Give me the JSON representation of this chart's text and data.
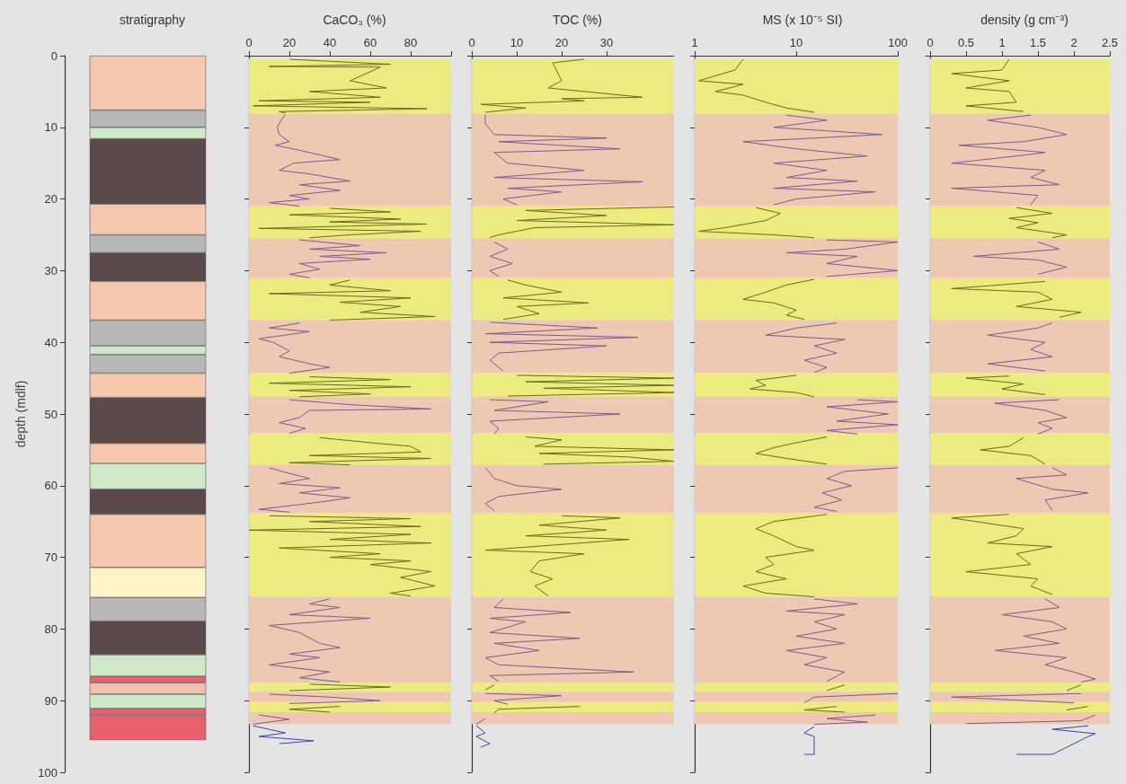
{
  "chart_data": [
    {
      "type": "bar",
      "title": "stratigraphy",
      "ylabel": "depth (mdlf)",
      "ylim": [
        100,
        0
      ],
      "yticks": [
        0,
        10,
        20,
        30,
        40,
        50,
        60,
        70,
        80,
        90,
        100
      ],
      "tick_labels": "y",
      "stacked": true,
      "categories": [
        null
      ],
      "series": [
        {
          "color": "#f6c8b0",
          "values": [
            7.6
          ]
        },
        {
          "color": "#b8b8b8",
          "values": [
            2.4
          ]
        },
        {
          "color": "#cfe8c8",
          "values": [
            1.6
          ]
        },
        {
          "color": "#5a4a4a",
          "values": [
            9.1
          ]
        },
        {
          "color": "#f6c8b0",
          "values": [
            4.3
          ]
        },
        {
          "color": "#b8b8b8",
          "values": [
            2.5
          ]
        },
        {
          "color": "#5a4a4a",
          "values": [
            4.0
          ]
        },
        {
          "color": "#f6c8b0",
          "values": [
            5.4
          ]
        },
        {
          "color": "#b8b8b8",
          "values": [
            3.6
          ]
        },
        {
          "color": "#cfe8c8",
          "values": [
            1.2
          ]
        },
        {
          "color": "#b8b8b8",
          "values": [
            2.6
          ]
        },
        {
          "color": "#f6c8b0",
          "values": [
            3.4
          ]
        },
        {
          "color": "#5a4a4a",
          "values": [
            6.4
          ]
        },
        {
          "color": "#f6c8b0",
          "values": [
            2.8
          ]
        },
        {
          "color": "#cfe8c8",
          "values": [
            3.6
          ]
        },
        {
          "color": "#5a4a4a",
          "values": [
            3.5
          ]
        },
        {
          "color": "#f6c8b0",
          "values": [
            7.4
          ]
        },
        {
          "color": "#fff4c8",
          "values": [
            4.2
          ]
        },
        {
          "color": "#b8b8b8",
          "values": [
            3.3
          ]
        },
        {
          "color": "#5a4a4a",
          "values": [
            4.7
          ]
        },
        {
          "color": "#cfe8c8",
          "values": [
            3.0
          ]
        },
        {
          "color": "#e86070",
          "values": [
            0.9
          ]
        },
        {
          "color": "#f0c0b0",
          "values": [
            1.6
          ]
        },
        {
          "color": "#cfe8c8",
          "values": [
            2.0
          ]
        },
        {
          "color": "#e86070",
          "values": [
            0.9
          ]
        },
        {
          "color": "#e8606e",
          "values": [
            3.5
          ]
        }
      ]
    },
    {
      "type": "line",
      "title": "CaCO₃ (%)",
      "xlim": [
        0,
        100
      ],
      "xticks": [
        0,
        20,
        40,
        60,
        80,
        {
          "value": 100,
          "label": null
        }
      ],
      "ylim": [
        100,
        0
      ],
      "yticks": [
        0,
        10,
        20,
        30,
        40,
        50,
        60,
        70,
        80,
        90,
        100
      ],
      "tick_labels": "x",
      "marker": "none",
      "bands": [
        {
          "axis": "y",
          "from": 0.4,
          "to": 8.1,
          "color": "#ebeb80"
        },
        {
          "axis": "y",
          "from": 8.1,
          "to": 21,
          "color": "#efc8b4"
        },
        {
          "axis": "y",
          "from": 21,
          "to": 25.5,
          "color": "#ebeb80"
        },
        {
          "axis": "y",
          "from": 25.5,
          "to": 31,
          "color": "#efc8b4"
        },
        {
          "axis": "y",
          "from": 31,
          "to": 36.9,
          "color": "#ebeb80"
        },
        {
          "axis": "y",
          "from": 36.9,
          "to": 44.3,
          "color": "#efc8b4"
        },
        {
          "axis": "y",
          "from": 44.3,
          "to": 47.6,
          "color": "#ebeb80"
        },
        {
          "axis": "y",
          "from": 47.6,
          "to": 52.7,
          "color": "#efc8b4"
        },
        {
          "axis": "y",
          "from": 52.7,
          "to": 57.1,
          "color": "#ebeb80"
        },
        {
          "axis": "y",
          "from": 57.1,
          "to": 63.8,
          "color": "#efc8b4"
        },
        {
          "axis": "y",
          "from": 63.8,
          "to": 75.5,
          "color": "#ebeb80"
        },
        {
          "axis": "y",
          "from": 75.5,
          "to": 87.5,
          "color": "#efc8b4"
        },
        {
          "axis": "y",
          "from": 87.5,
          "to": 88.8,
          "color": "#ebeb80"
        },
        {
          "axis": "y",
          "from": 88.8,
          "to": 90.2,
          "color": "#efc8b4"
        },
        {
          "axis": "y",
          "from": 90.2,
          "to": 91.6,
          "color": "#ebeb80"
        },
        {
          "axis": "y",
          "from": 91.6,
          "to": 93.3,
          "color": "#efc8b4"
        }
      ],
      "series": [
        {
          "color": "#6f6a1e",
          "x": [
            20,
            70,
            10,
            65,
            50,
            68,
            30,
            65,
            5,
            60,
            2,
            88,
            15,
            18,
            null,
            40,
            70,
            20,
            75,
            40,
            88,
            5,
            85,
            50,
            30,
            null,
            50,
            40,
            70,
            10,
            80,
            45,
            75,
            55,
            92,
            40,
            null,
            30,
            70,
            10,
            80,
            20,
            60,
            25,
            null,
            35,
            60,
            80,
            85,
            30,
            90,
            20,
            50,
            null,
            10,
            80,
            30,
            85,
            0,
            80,
            40,
            90,
            15,
            65,
            40,
            80,
            60,
            90,
            75,
            92,
            70,
            80,
            null,
            30,
            70,
            20,
            null,
            45,
            20,
            40
          ],
          "values": [
            0.5,
            1.2,
            1.5,
            1.6,
            3.5,
            4.5,
            5,
            5.8,
            6.3,
            6.5,
            7,
            7.4,
            7.8,
            8.0,
            null,
            21.3,
            21.8,
            22.2,
            22.8,
            23.2,
            23.5,
            24.1,
            24.5,
            25,
            25.4,
            null,
            31.3,
            32,
            32.8,
            33.2,
            33.8,
            34.4,
            35,
            35.8,
            36.4,
            36.9,
            null,
            44.8,
            45.2,
            45.7,
            46.2,
            46.7,
            47.2,
            47.6,
            null,
            53.3,
            54,
            54.5,
            55.3,
            55.8,
            56.2,
            56.8,
            57.1,
            null,
            64.2,
            64.6,
            65,
            65.7,
            66.2,
            66.8,
            67.5,
            68,
            68.7,
            69.5,
            70,
            70.5,
            71,
            72,
            72.8,
            74,
            75,
            75.4,
            null,
            87.7,
            88.1,
            88.6,
            null,
            90.8,
            91.2,
            91.6
          ]
        },
        {
          "color": "#7b5c8c",
          "x": [
            18,
            16,
            14,
            15,
            20,
            13,
            25,
            45,
            22,
            15,
            30,
            50,
            25,
            45,
            20,
            30,
            10,
            25,
            null,
            25,
            55,
            30,
            68,
            35,
            60,
            25,
            35,
            20,
            30,
            null,
            25,
            10,
            30,
            5,
            12,
            20,
            15,
            30,
            40,
            20,
            null,
            20,
            50,
            90,
            30,
            25,
            15,
            28,
            20,
            null,
            10,
            20,
            30,
            15,
            45,
            25,
            50,
            35,
            5,
            20,
            null,
            40,
            30,
            45,
            20,
            60,
            10,
            25,
            35,
            45,
            20,
            35,
            10,
            40,
            25,
            45,
            null,
            10,
            40,
            65,
            20,
            null,
            5,
            20,
            2
          ],
          "values": [
            8.2,
            9,
            10,
            11,
            12,
            12.5,
            13.2,
            14.5,
            15,
            16,
            16.5,
            17.5,
            18,
            18.8,
            19.5,
            20,
            20.5,
            21,
            null,
            25.7,
            26.5,
            27,
            27.5,
            28,
            28.4,
            29,
            29.8,
            30.5,
            31,
            null,
            37.3,
            38,
            38.5,
            39.5,
            40,
            41.2,
            42,
            43,
            43.5,
            44.3,
            null,
            48,
            48.7,
            49.3,
            49.5,
            50.5,
            51.2,
            52,
            52.7,
            null,
            57.5,
            58.3,
            59,
            59.7,
            60.3,
            61,
            61.7,
            62.3,
            63.3,
            63.7,
            null,
            75.8,
            76.5,
            77,
            78,
            78.5,
            79.5,
            80.5,
            82,
            82.6,
            83.5,
            84,
            85,
            86,
            86.8,
            87.4,
            null,
            89.1,
            89.5,
            90,
            90.4,
            null,
            92,
            92.6,
            93.3
          ]
        },
        {
          "color": "#3848a0",
          "x": [
            2,
            18,
            5,
            32,
            15
          ],
          "values": [
            93.5,
            94.5,
            95,
            95.6,
            96
          ]
        }
      ]
    },
    {
      "type": "line",
      "title": "TOC (%)",
      "xlim": [
        0,
        45
      ],
      "xticks": [
        0,
        10,
        20,
        30
      ],
      "ylim": [
        100,
        0
      ],
      "yticks": [
        0,
        10,
        20,
        30,
        40,
        50,
        60,
        70,
        80,
        90,
        100
      ],
      "tick_labels": "x",
      "marker": "none",
      "bands": [
        {
          "axis": "y",
          "from": 0.4,
          "to": 8.1,
          "color": "#ebeb80"
        },
        {
          "axis": "y",
          "from": 8.1,
          "to": 21,
          "color": "#efc8b4"
        },
        {
          "axis": "y",
          "from": 21,
          "to": 25.5,
          "color": "#ebeb80"
        },
        {
          "axis": "y",
          "from": 25.5,
          "to": 31,
          "color": "#efc8b4"
        },
        {
          "axis": "y",
          "from": 31,
          "to": 36.9,
          "color": "#ebeb80"
        },
        {
          "axis": "y",
          "from": 36.9,
          "to": 44.3,
          "color": "#efc8b4"
        },
        {
          "axis": "y",
          "from": 44.3,
          "to": 47.6,
          "color": "#ebeb80"
        },
        {
          "axis": "y",
          "from": 47.6,
          "to": 52.7,
          "color": "#efc8b4"
        },
        {
          "axis": "y",
          "from": 52.7,
          "to": 57.1,
          "color": "#ebeb80"
        },
        {
          "axis": "y",
          "from": 57.1,
          "to": 63.8,
          "color": "#efc8b4"
        },
        {
          "axis": "y",
          "from": 63.8,
          "to": 75.5,
          "color": "#ebeb80"
        },
        {
          "axis": "y",
          "from": 75.5,
          "to": 87.5,
          "color": "#efc8b4"
        },
        {
          "axis": "y",
          "from": 87.5,
          "to": 88.8,
          "color": "#ebeb80"
        },
        {
          "axis": "y",
          "from": 88.8,
          "to": 90.2,
          "color": "#efc8b4"
        },
        {
          "axis": "y",
          "from": 90.2,
          "to": 91.6,
          "color": "#ebeb80"
        },
        {
          "axis": "y",
          "from": 91.6,
          "to": 93.3,
          "color": "#efc8b4"
        }
      ],
      "series": [
        {
          "color": "#6f6a1e",
          "x": [
            25,
            18,
            20,
            17,
            38,
            20,
            25,
            2,
            12,
            3,
            null,
            45,
            12,
            30,
            10,
            45,
            14,
            6,
            4,
            null,
            8,
            12,
            20,
            7,
            26,
            10,
            15,
            7,
            null,
            10,
            45,
            12,
            45,
            16,
            45,
            8,
            null,
            12,
            20,
            14,
            45,
            15,
            35,
            45,
            16,
            null,
            20,
            33,
            15,
            30,
            12,
            35,
            3,
            25,
            15,
            13,
            18,
            14,
            17,
            null,
            5,
            3,
            null,
            24,
            6,
            5
          ],
          "values": [
            0.5,
            1,
            3.5,
            4.5,
            5.8,
            6,
            6.3,
            6.8,
            7.3,
            7.9,
            null,
            21.1,
            21.6,
            22.3,
            23,
            23.6,
            24,
            25,
            25.4,
            null,
            31.3,
            32,
            33,
            33.8,
            34.5,
            35,
            36,
            36.8,
            null,
            44.6,
            45,
            45.5,
            46,
            46.4,
            47,
            47.5,
            null,
            53.2,
            53.6,
            54.5,
            55,
            55.5,
            56,
            56.6,
            57,
            null,
            64.2,
            64.5,
            65.5,
            66.2,
            67,
            67.5,
            69,
            69.5,
            70.5,
            72,
            73,
            74,
            75.4,
            null,
            87.8,
            88.5,
            null,
            90.8,
            91.2,
            91.7
          ]
        },
        {
          "color": "#7b5c8c",
          "x": [
            3,
            3,
            5,
            30,
            6,
            33,
            5,
            8,
            25,
            5,
            38,
            8,
            20,
            7,
            10,
            null,
            5,
            8,
            4,
            9,
            4,
            6,
            null,
            4,
            28,
            3,
            37,
            4,
            30,
            6,
            4,
            7,
            null,
            4,
            17,
            5,
            33,
            4,
            6,
            5,
            null,
            3,
            5,
            10,
            20,
            6,
            3,
            5,
            null,
            7,
            5,
            22,
            4,
            12,
            4,
            24,
            5,
            15,
            3,
            6,
            36,
            4,
            6,
            null,
            3,
            20,
            5,
            8,
            null,
            3,
            1
          ],
          "values": [
            8.3,
            9.5,
            11,
            11.5,
            12,
            13,
            13.5,
            15,
            16,
            17,
            17.6,
            18.5,
            19,
            20,
            20.8,
            null,
            26,
            27,
            28,
            29,
            30,
            30.8,
            null,
            37.2,
            38,
            38.8,
            39.3,
            40,
            40.5,
            41.5,
            42.5,
            44,
            null,
            48,
            48.3,
            49.5,
            50,
            51,
            52,
            52.8,
            null,
            57.5,
            59,
            60,
            60.5,
            61.5,
            62.5,
            63.5,
            null,
            75.8,
            77,
            77.7,
            78.5,
            79,
            80.5,
            81.3,
            82,
            83,
            84,
            85,
            86,
            86.5,
            87.3,
            null,
            89,
            89.3,
            90,
            90.5,
            null,
            92.5,
            93.3
          ]
        },
        {
          "color": "#3848a0",
          "x": [
            1,
            3,
            1,
            4,
            2
          ],
          "values": [
            93.5,
            94.5,
            95,
            96,
            96.5
          ]
        }
      ]
    },
    {
      "type": "line",
      "title": "MS (x 10⁻⁵ SI)",
      "log": "x",
      "xlim": [
        1,
        100
      ],
      "xticks": [
        1,
        10,
        100
      ],
      "ylim": [
        100,
        0
      ],
      "yticks": [
        0,
        10,
        20,
        30,
        40,
        50,
        60,
        70,
        80,
        90,
        100
      ],
      "tick_labels": "x",
      "marker": "none",
      "bands": [
        {
          "axis": "y",
          "from": 0.4,
          "to": 8.1,
          "color": "#ebeb80"
        },
        {
          "axis": "y",
          "from": 8.1,
          "to": 21,
          "color": "#efc8b4"
        },
        {
          "axis": "y",
          "from": 21,
          "to": 25.5,
          "color": "#ebeb80"
        },
        {
          "axis": "y",
          "from": 25.5,
          "to": 31,
          "color": "#efc8b4"
        },
        {
          "axis": "y",
          "from": 31,
          "to": 36.9,
          "color": "#ebeb80"
        },
        {
          "axis": "y",
          "from": 36.9,
          "to": 44.3,
          "color": "#efc8b4"
        },
        {
          "axis": "y",
          "from": 44.3,
          "to": 47.6,
          "color": "#ebeb80"
        },
        {
          "axis": "y",
          "from": 47.6,
          "to": 52.7,
          "color": "#efc8b4"
        },
        {
          "axis": "y",
          "from": 52.7,
          "to": 57.1,
          "color": "#ebeb80"
        },
        {
          "axis": "y",
          "from": 57.1,
          "to": 63.8,
          "color": "#efc8b4"
        },
        {
          "axis": "y",
          "from": 63.8,
          "to": 75.5,
          "color": "#ebeb80"
        },
        {
          "axis": "y",
          "from": 75.5,
          "to": 87.5,
          "color": "#efc8b4"
        },
        {
          "axis": "y",
          "from": 87.5,
          "to": 88.8,
          "color": "#ebeb80"
        },
        {
          "axis": "y",
          "from": 88.8,
          "to": 90.2,
          "color": "#efc8b4"
        },
        {
          "axis": "y",
          "from": 90.2,
          "to": 91.6,
          "color": "#ebeb80"
        },
        {
          "axis": "y",
          "from": 91.6,
          "to": 93.3,
          "color": "#efc8b4"
        }
      ],
      "series": [
        {
          "color": "#6f6a1e",
          "x": [
            3,
            2.5,
            1.1,
            3,
            1.6,
            3,
            5,
            8,
            15,
            null,
            4,
            7,
            5,
            2,
            1.1,
            6,
            15,
            null,
            15,
            8,
            5,
            3,
            6,
            10,
            8,
            12,
            null,
            10,
            4,
            5,
            3.5,
            10,
            15,
            null,
            20,
            10,
            6,
            4,
            8,
            20,
            null,
            20,
            6,
            4,
            6,
            10,
            15,
            5,
            6,
            4,
            8,
            3,
            5,
            15,
            null,
            30,
            20,
            null,
            25,
            12,
            30
          ],
          "values": [
            0.5,
            2,
            3.5,
            4,
            5,
            5.5,
            6.5,
            7.3,
            7.9,
            null,
            21.2,
            22,
            23,
            24,
            24.5,
            25,
            25.4,
            null,
            31.2,
            32,
            33,
            34,
            34.5,
            35.5,
            36.2,
            36.8,
            null,
            44.6,
            45.3,
            46,
            46.5,
            47,
            47.6,
            null,
            53.2,
            54,
            54.7,
            55.5,
            56.2,
            57,
            null,
            64,
            65,
            66,
            67,
            68.5,
            69,
            70,
            71,
            72,
            73,
            74,
            75,
            75.5,
            null,
            87.8,
            88.6,
            null,
            90.8,
            91.3,
            91.6
          ]
        },
        {
          "color": "#7b5c8c",
          "x": [
            8,
            20,
            6,
            70,
            15,
            3,
            10,
            50,
            6,
            20,
            8,
            40,
            6,
            60,
            10,
            6,
            null,
            20,
            100,
            30,
            8,
            40,
            20,
            100,
            20,
            null,
            25,
            10,
            5,
            30,
            15,
            25,
            12,
            20,
            15,
            null,
            40,
            100,
            20,
            80,
            25,
            100,
            20,
            40,
            null,
            100,
            30,
            20,
            35,
            18,
            28,
            15,
            25,
            null,
            15,
            40,
            8,
            30,
            15,
            25,
            10,
            30,
            8,
            20,
            12,
            30,
            20,
            null,
            100,
            15,
            12,
            null,
            60,
            20,
            50,
            15
          ],
          "values": [
            8.3,
            9,
            10,
            11,
            11.5,
            12,
            13,
            14,
            15,
            16,
            17,
            17.5,
            18.5,
            19,
            20,
            20.8,
            null,
            25.7,
            26,
            27,
            27.5,
            28,
            29,
            30,
            30.8,
            null,
            37.3,
            38,
            39,
            39.6,
            40.5,
            41.5,
            42.5,
            43.5,
            44.2,
            null,
            48,
            48.3,
            49,
            50,
            51,
            51.5,
            52.3,
            52.8,
            null,
            57.5,
            58,
            59,
            60,
            61,
            62,
            63,
            63.6,
            null,
            75.8,
            76.5,
            77.5,
            78,
            79,
            80,
            81,
            82,
            83,
            84,
            85,
            86,
            87.3,
            null,
            89,
            89.5,
            90.3,
            null,
            92,
            92.5,
            93,
            93.3
          ]
        },
        {
          "color": "#3848a0",
          "x": [
            15,
            12,
            15,
            15,
            12
          ],
          "values": [
            93.6,
            94.5,
            95,
            97.5,
            97.5
          ]
        }
      ]
    },
    {
      "type": "line",
      "title": "density (g cm⁻³)",
      "xlim": [
        0,
        2.5
      ],
      "xticks": [
        0,
        0.5,
        1,
        1.5,
        2,
        2.5
      ],
      "ylim": [
        100,
        0
      ],
      "yticks": [
        0,
        10,
        20,
        30,
        40,
        50,
        60,
        70,
        80,
        90,
        100
      ],
      "tick_labels": "x",
      "marker": "none",
      "bands": [
        {
          "axis": "y",
          "from": 0.4,
          "to": 8.1,
          "color": "#ebeb80"
        },
        {
          "axis": "y",
          "from": 8.1,
          "to": 21,
          "color": "#efc8b4"
        },
        {
          "axis": "y",
          "from": 21,
          "to": 25.5,
          "color": "#ebeb80"
        },
        {
          "axis": "y",
          "from": 25.5,
          "to": 31,
          "color": "#efc8b4"
        },
        {
          "axis": "y",
          "from": 31,
          "to": 36.9,
          "color": "#ebeb80"
        },
        {
          "axis": "y",
          "from": 36.9,
          "to": 44.3,
          "color": "#efc8b4"
        },
        {
          "axis": "y",
          "from": 44.3,
          "to": 47.6,
          "color": "#ebeb80"
        },
        {
          "axis": "y",
          "from": 47.6,
          "to": 52.7,
          "color": "#efc8b4"
        },
        {
          "axis": "y",
          "from": 52.7,
          "to": 57.1,
          "color": "#ebeb80"
        },
        {
          "axis": "y",
          "from": 57.1,
          "to": 63.8,
          "color": "#efc8b4"
        },
        {
          "axis": "y",
          "from": 63.8,
          "to": 75.5,
          "color": "#ebeb80"
        },
        {
          "axis": "y",
          "from": 75.5,
          "to": 87.5,
          "color": "#efc8b4"
        },
        {
          "axis": "y",
          "from": 87.5,
          "to": 88.8,
          "color": "#ebeb80"
        },
        {
          "axis": "y",
          "from": 88.8,
          "to": 90.2,
          "color": "#efc8b4"
        },
        {
          "axis": "y",
          "from": 90.2,
          "to": 91.6,
          "color": "#ebeb80"
        },
        {
          "axis": "y",
          "from": 91.6,
          "to": 93.3,
          "color": "#efc8b4"
        }
      ],
      "series": [
        {
          "color": "#6f6a1e",
          "x": [
            1.1,
            1.0,
            0.3,
            1.1,
            0.5,
            1.1,
            1.2,
            0.5,
            1.3,
            null,
            1.2,
            1.7,
            1.1,
            1.5,
            1.2,
            1.9,
            1.7,
            null,
            1.6,
            0.3,
            1.5,
            1.7,
            1.2,
            2.1,
            1.8,
            null,
            1.1,
            0.5,
            1.3,
            1.0,
            1.6,
            null,
            1.3,
            1.1,
            0.7,
            1.4,
            1.6,
            null,
            1.1,
            0.3,
            1.3,
            1.2,
            0.8,
            1.7,
            1.2,
            1.4,
            0.5,
            1.5,
            1.4,
            1.7,
            null,
            2.1,
            1.9,
            null,
            2.2,
            1.9
          ],
          "values": [
            0.5,
            2,
            2.5,
            3.5,
            4.5,
            5,
            6.5,
            7,
            7.8,
            null,
            21.2,
            22,
            22.7,
            23.3,
            24,
            25,
            25.4,
            null,
            31.5,
            32.5,
            33,
            34,
            35,
            35.8,
            36.5,
            null,
            44.7,
            45,
            45.8,
            46.5,
            47.3,
            null,
            53.3,
            54.5,
            55,
            55.8,
            57,
            null,
            64,
            64.5,
            66,
            67,
            68,
            68.5,
            69.5,
            71,
            72,
            73,
            74,
            75.2,
            null,
            87.8,
            88.6,
            null,
            90.8,
            91.3
          ]
        },
        {
          "color": "#7b5c8c",
          "x": [
            1.4,
            0.8,
            1.5,
            1.9,
            1.3,
            0.4,
            1.6,
            1.2,
            0.3,
            1.6,
            1.4,
            1.8,
            0.3,
            1.5,
            1.4,
            null,
            1.5,
            1.8,
            0.6,
            1.5,
            1.9,
            1.5,
            null,
            1.7,
            1.5,
            0.8,
            1.6,
            1.4,
            1.7,
            0.8,
            1.6,
            null,
            1.8,
            0.9,
            1.6,
            1.9,
            1.5,
            1.7,
            1.5,
            null,
            1.7,
            1.9,
            1.2,
            1.7,
            2.2,
            1.6,
            1.7,
            null,
            1.6,
            1.8,
            1.0,
            1.7,
            1.9,
            1.3,
            1.8,
            0.9,
            1.9,
            1.6,
            2.0,
            2.3,
            2.1,
            null,
            2.1,
            0.3,
            2.0,
            null,
            2.3,
            2.1,
            0.5
          ],
          "values": [
            8.3,
            9,
            10,
            11,
            12,
            12.5,
            13.5,
            14,
            15,
            16,
            17,
            18,
            18.5,
            19.5,
            20.8,
            null,
            26,
            27,
            28,
            28.5,
            29.5,
            30.5,
            null,
            37.3,
            38,
            39,
            40,
            41,
            42,
            43,
            44,
            null,
            48,
            48.5,
            49.5,
            50.5,
            51.2,
            52,
            52.8,
            null,
            57.5,
            58.5,
            59,
            60.5,
            61,
            62,
            63.5,
            null,
            75.8,
            77,
            78,
            79,
            80,
            81,
            82,
            83,
            84,
            85,
            86,
            87,
            87.4,
            null,
            89,
            89.5,
            90.3,
            null,
            92,
            92.8,
            93.2
          ]
        },
        {
          "color": "#3848a0",
          "x": [
            2.2,
            1.7,
            2.3,
            2.2,
            1.7,
            1.2
          ],
          "values": [
            93.5,
            94,
            94.6,
            95,
            97.5,
            97.5
          ]
        }
      ]
    }
  ]
}
